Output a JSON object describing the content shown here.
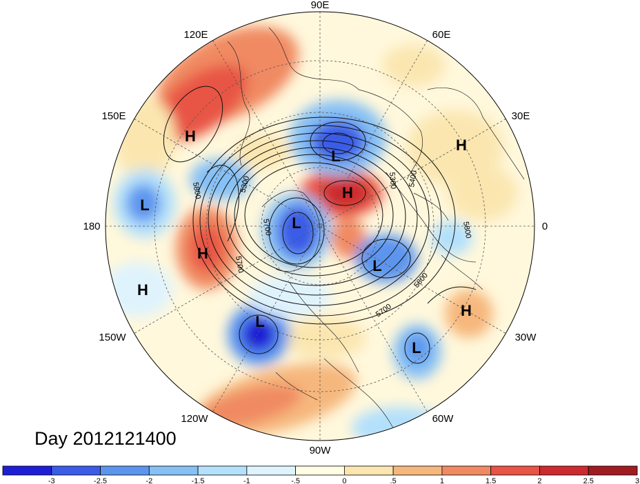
{
  "map": {
    "projection": "north-polar-stereographic",
    "longitude_labels": [
      "90E",
      "60E",
      "30E",
      "0",
      "30W",
      "60W",
      "90W",
      "120W",
      "150W",
      "180",
      "150E",
      "120E"
    ],
    "contour_labels": [
      "5300",
      "5800",
      "5700",
      "5700",
      "5300",
      "5400",
      "5800",
      "5800",
      "5700"
    ],
    "centers": [
      {
        "type": "H",
        "lon_label": "150E region"
      },
      {
        "type": "L",
        "lon_label": "90E region"
      },
      {
        "type": "H",
        "lon_label": "30E region"
      },
      {
        "type": "H",
        "lon_label": "pole region"
      },
      {
        "type": "L",
        "lon_label": "180 region"
      },
      {
        "type": "L",
        "lon_label": "polar"
      },
      {
        "type": "H",
        "lon_label": "170W region"
      },
      {
        "type": "L",
        "lon_label": "Atlantic"
      },
      {
        "type": "H",
        "lon_label": "165W region"
      },
      {
        "type": "L",
        "lon_label": "140W region"
      },
      {
        "type": "H",
        "lon_label": "20W region"
      },
      {
        "type": "L",
        "lon_label": "40W region"
      }
    ]
  },
  "day_label": "Day 2012121400",
  "colorbar": {
    "tick_labels": [
      "-3",
      "-2.5",
      "-2",
      "-1.5",
      "-1",
      "-.5",
      "0",
      ".5",
      "1",
      "1.5",
      "2",
      "2.5",
      "3"
    ],
    "colors": [
      "#1e1ed6",
      "#3b5ce6",
      "#5b95ee",
      "#86c0f4",
      "#b4e0fb",
      "#dff3fd",
      "#fffde4",
      "#fbe6b0",
      "#f6b77d",
      "#f08a62",
      "#e85445",
      "#cc2a2e",
      "#a01b22"
    ]
  }
}
